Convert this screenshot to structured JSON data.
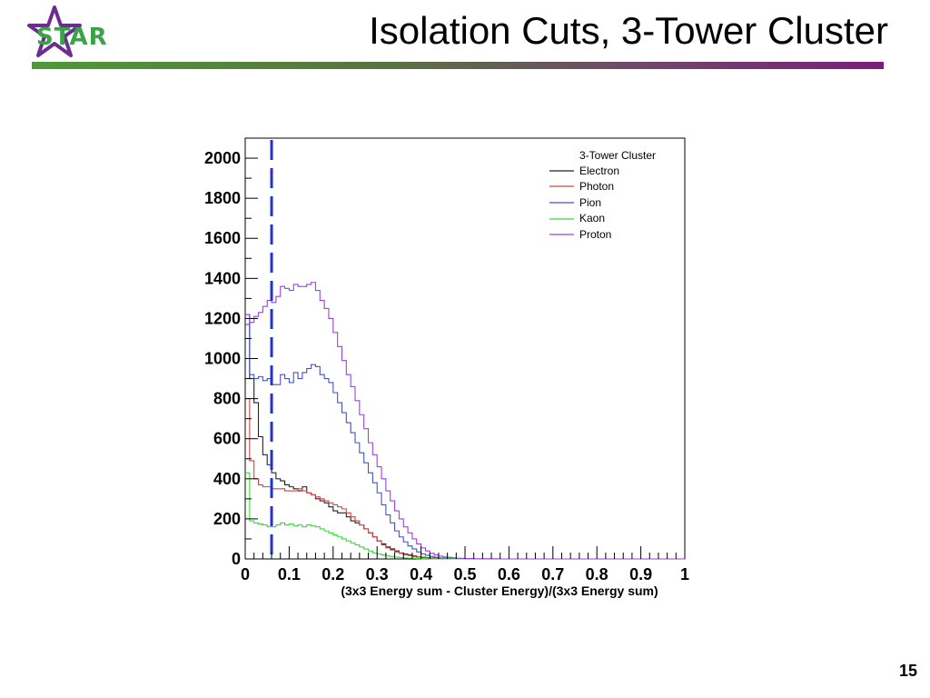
{
  "slide": {
    "logo_text": "STAR",
    "title": "Isolation Cuts, 3-Tower Cluster",
    "page_number": "15"
  },
  "colors": {
    "title_bar_start": "#4d9a37",
    "title_bar_end": "#7a1f7a",
    "logo_star": "#6b2d8f",
    "logo_text": "#3aa34a",
    "cut_line": "#2233cc"
  },
  "chart_data": {
    "type": "line",
    "subtype": "step-histogram",
    "title": "",
    "legend_title": "3-Tower Cluster",
    "legend_position": "top-right",
    "xlabel": "(3x3 Energy sum - Cluster Energy)/(3x3 Energy sum)",
    "ylabel": "",
    "xlim": [
      0,
      1
    ],
    "ylim": [
      0,
      2100
    ],
    "grid": false,
    "x_ticks": [
      "0",
      "0.1",
      "0.2",
      "0.3",
      "0.4",
      "0.5",
      "0.6",
      "0.7",
      "0.8",
      "0.9",
      "1"
    ],
    "y_ticks": [
      "0",
      "200",
      "400",
      "600",
      "800",
      "1000",
      "1200",
      "1400",
      "1600",
      "1800",
      "2000"
    ],
    "bin_width": 0.01,
    "x": [
      0.0,
      0.01,
      0.02,
      0.03,
      0.04,
      0.05,
      0.06,
      0.07,
      0.08,
      0.09,
      0.1,
      0.11,
      0.12,
      0.13,
      0.14,
      0.15,
      0.16,
      0.17,
      0.18,
      0.19,
      0.2,
      0.21,
      0.22,
      0.23,
      0.24,
      0.25,
      0.26,
      0.27,
      0.28,
      0.29,
      0.3,
      0.31,
      0.32,
      0.33,
      0.34,
      0.35,
      0.36,
      0.37,
      0.38,
      0.39,
      0.4,
      0.41,
      0.42,
      0.43,
      0.44,
      0.45,
      0.46,
      0.47,
      0.48,
      0.49,
      0.5,
      0.51,
      0.52,
      0.53,
      0.54,
      0.55,
      0.56,
      0.57,
      0.58,
      0.59,
      0.6,
      0.61,
      0.62,
      0.63,
      0.64,
      0.65,
      0.66,
      0.67,
      0.68,
      0.69,
      0.7,
      0.71,
      0.72,
      0.73,
      0.74,
      0.75,
      0.76,
      0.77,
      0.78,
      0.79,
      0.8,
      0.81,
      0.82,
      0.83,
      0.84,
      0.85,
      0.86,
      0.87,
      0.88,
      0.89,
      0.9,
      0.91,
      0.92,
      0.93,
      0.94,
      0.95,
      0.96,
      0.97,
      0.98,
      0.99
    ],
    "series": [
      {
        "name": "Electron",
        "color": "#222222",
        "values": [
          1220,
          900,
          780,
          610,
          520,
          470,
          430,
          400,
          390,
          370,
          360,
          350,
          340,
          360,
          330,
          320,
          300,
          290,
          280,
          260,
          240,
          230,
          230,
          210,
          190,
          180,
          170,
          150,
          130,
          110,
          90,
          75,
          60,
          50,
          40,
          30,
          25,
          20,
          15,
          10,
          8,
          6,
          5,
          4,
          3,
          2,
          2,
          1,
          1,
          0,
          0,
          0,
          0,
          0,
          0,
          0,
          0,
          0,
          0,
          0,
          0,
          0,
          0,
          0,
          0,
          0,
          0,
          0,
          0,
          0,
          0,
          0,
          0,
          0,
          0,
          0,
          0,
          0,
          0,
          0,
          0,
          0,
          0,
          0,
          0,
          0,
          0,
          0,
          0,
          0,
          0,
          0,
          0,
          0,
          0,
          0,
          0,
          0,
          0,
          0
        ]
      },
      {
        "name": "Photon",
        "color": "#d94040",
        "values": [
          800,
          490,
          400,
          370,
          360,
          360,
          350,
          350,
          350,
          340,
          340,
          340,
          350,
          340,
          330,
          320,
          310,
          300,
          290,
          280,
          270,
          260,
          250,
          230,
          210,
          190,
          170,
          150,
          130,
          110,
          90,
          70,
          55,
          45,
          35,
          28,
          22,
          17,
          12,
          9,
          6,
          5,
          4,
          3,
          2,
          2,
          1,
          1,
          0,
          0,
          0,
          0,
          0,
          0,
          0,
          0,
          0,
          0,
          0,
          0,
          0,
          0,
          0,
          0,
          0,
          0,
          0,
          0,
          0,
          0,
          0,
          0,
          0,
          0,
          0,
          0,
          0,
          0,
          0,
          0,
          0,
          0,
          0,
          0,
          0,
          0,
          0,
          0,
          0,
          0,
          0,
          0,
          0,
          0,
          0,
          0,
          0,
          0,
          0,
          0
        ]
      },
      {
        "name": "Pion",
        "color": "#4455bb",
        "values": [
          1170,
          920,
          900,
          910,
          890,
          900,
          870,
          870,
          920,
          900,
          880,
          930,
          900,
          930,
          950,
          970,
          960,
          920,
          900,
          880,
          830,
          780,
          730,
          680,
          630,
          580,
          530,
          480,
          430,
          380,
          330,
          270,
          220,
          180,
          140,
          110,
          85,
          65,
          50,
          35,
          25,
          18,
          12,
          8,
          5,
          4,
          3,
          2,
          1,
          1,
          0,
          0,
          0,
          0,
          0,
          0,
          0,
          0,
          0,
          0,
          0,
          0,
          0,
          0,
          0,
          0,
          0,
          0,
          0,
          0,
          0,
          0,
          0,
          0,
          0,
          0,
          0,
          0,
          0,
          0,
          0,
          0,
          0,
          0,
          0,
          0,
          0,
          0,
          0,
          0,
          0,
          0,
          0,
          0,
          0,
          0,
          0,
          0,
          0,
          0
        ]
      },
      {
        "name": "Kaon",
        "color": "#33dd33",
        "values": [
          430,
          190,
          180,
          175,
          170,
          160,
          160,
          170,
          180,
          170,
          175,
          165,
          170,
          160,
          170,
          165,
          160,
          150,
          140,
          130,
          120,
          110,
          100,
          90,
          80,
          70,
          60,
          50,
          40,
          30,
          25,
          20,
          15,
          12,
          9,
          7,
          5,
          4,
          3,
          2,
          1,
          1,
          0,
          0,
          0,
          0,
          0,
          0,
          0,
          0,
          0,
          0,
          0,
          0,
          0,
          0,
          0,
          0,
          0,
          0,
          0,
          0,
          0,
          0,
          0,
          0,
          0,
          0,
          0,
          0,
          0,
          0,
          0,
          0,
          0,
          0,
          0,
          0,
          0,
          0,
          0,
          0,
          0,
          0,
          0,
          0,
          0,
          0,
          0,
          0,
          0,
          0,
          0,
          0,
          0,
          0,
          0,
          0,
          0,
          0
        ]
      },
      {
        "name": "Proton",
        "color": "#9944dd",
        "values": [
          1220,
          1180,
          1210,
          1230,
          1260,
          1290,
          1280,
          1310,
          1360,
          1350,
          1340,
          1370,
          1360,
          1360,
          1370,
          1380,
          1340,
          1290,
          1250,
          1200,
          1130,
          1060,
          990,
          920,
          860,
          790,
          720,
          650,
          580,
          520,
          460,
          400,
          340,
          290,
          240,
          200,
          160,
          130,
          100,
          75,
          55,
          40,
          28,
          20,
          14,
          10,
          8,
          6,
          4,
          3,
          2,
          2,
          1,
          1,
          1,
          1,
          1,
          1,
          0,
          0,
          0,
          0,
          0,
          0,
          0,
          0,
          0,
          0,
          0,
          0,
          0,
          0,
          0,
          0,
          0,
          0,
          0,
          0,
          0,
          0,
          0,
          0,
          0,
          0,
          0,
          0,
          0,
          0,
          0,
          0,
          0,
          0,
          0,
          0,
          0,
          0,
          0,
          0,
          0,
          0
        ]
      }
    ],
    "annotations": [
      {
        "type": "vertical-dashed-line",
        "x": 0.06,
        "color": "#2233cc"
      }
    ]
  }
}
